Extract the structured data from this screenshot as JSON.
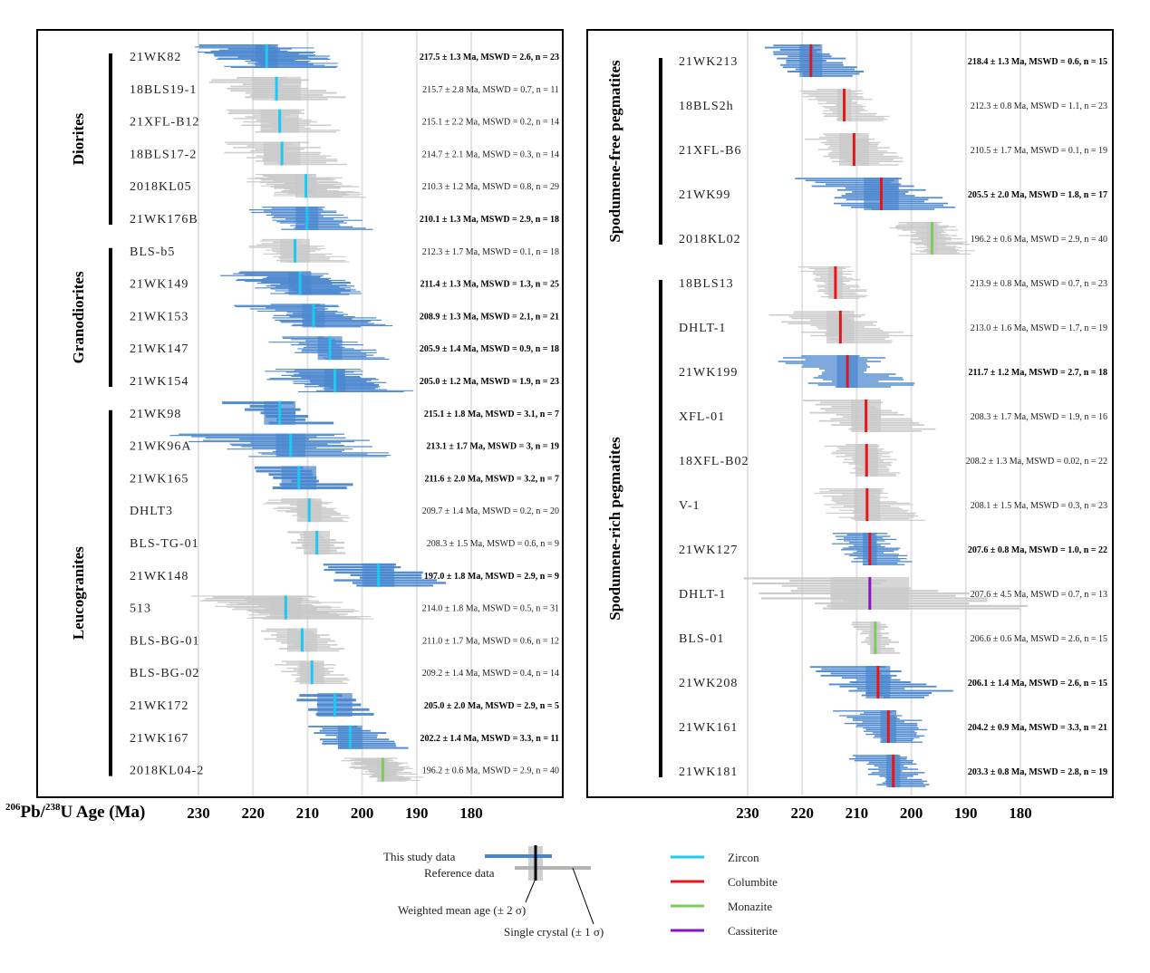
{
  "chart_data": {
    "type": "scatter",
    "subtype": "age-ranked crystal plot with weighted means",
    "xlabel_prefix_sup1": "206",
    "xlabel_part1": "Pb/",
    "xlabel_prefix_sup2": "238",
    "xlabel_part2": "U Age (Ma)",
    "x_ticks": [
      230,
      220,
      210,
      200,
      190,
      180
    ],
    "xlim": [
      235,
      175
    ],
    "x_reversed": true,
    "grid": true,
    "colors": {
      "study": "#4a86cf",
      "reference": "#c8c8c8",
      "Zircon": "#1ec8f5",
      "Columbite": "#e8141a",
      "Monazite": "#7ccc5a",
      "Cassiterite": "#8a12c8"
    },
    "panels": [
      {
        "groups": [
          {
            "name": "Diorites",
            "samples": [
              {
                "id": "21WK82",
                "age": 217.5,
                "err": 1.3,
                "mswd": "2.6",
                "n": 23,
                "mineral": "Zircon",
                "study": true,
                "spread": 16,
                "label": "217.5 ± 1.3 Ma, MSWD = 2.6, n = 23"
              },
              {
                "id": "18BLS19-1",
                "age": 215.7,
                "err": 2.8,
                "mswd": "0.7",
                "n": 11,
                "mineral": "Zircon",
                "study": false,
                "spread": 14,
                "label": "215.7 ± 2.8 Ma, MSWD = 0.7, n = 11"
              },
              {
                "id": "21XFL-B12",
                "age": 215.1,
                "err": 2.2,
                "mswd": "0.2",
                "n": 14,
                "mineral": "Zircon",
                "study": false,
                "spread": 12,
                "label": "215.1 ± 2.2 Ma, MSWD = 0.2, n = 14"
              },
              {
                "id": "18BLS17-2",
                "age": 214.7,
                "err": 2.1,
                "mswd": "0.3",
                "n": 14,
                "mineral": "Zircon",
                "study": false,
                "spread": 13,
                "label": "214.7 ± 2.1 Ma, MSWD = 0.3, n = 14"
              },
              {
                "id": "2018KL05",
                "age": 210.3,
                "err": 1.2,
                "mswd": "0.8",
                "n": 29,
                "mineral": "Zircon",
                "study": false,
                "spread": 12,
                "label": "210.3 ± 1.2 Ma, MSWD = 0.8, n = 29"
              },
              {
                "id": "21WK176B",
                "age": 210.1,
                "err": 1.3,
                "mswd": "2.9",
                "n": 18,
                "mineral": "Zircon",
                "study": true,
                "spread": 12,
                "label": "210.1 ± 1.3 Ma, MSWD = 2.9, n = 18"
              }
            ]
          },
          {
            "name": "Granodiorites",
            "samples": [
              {
                "id": "BLS-b5",
                "age": 212.3,
                "err": 1.7,
                "mswd": "0.1",
                "n": 18,
                "mineral": "Zircon",
                "study": false,
                "spread": 10,
                "label": "212.3 ± 1.7 Ma, MSWD = 0.1, n = 18"
              },
              {
                "id": "21WK149",
                "age": 211.4,
                "err": 1.3,
                "mswd": "1.3",
                "n": 25,
                "mineral": "Zircon",
                "study": true,
                "spread": 16,
                "label": "211.4 ± 1.3 Ma, MSWD = 1.3, n = 25"
              },
              {
                "id": "21WK153",
                "age": 208.9,
                "err": 1.3,
                "mswd": "2.1",
                "n": 21,
                "mineral": "Zircon",
                "study": true,
                "spread": 15,
                "label": "208.9 ± 1.3 Ma, MSWD = 2.1, n = 21"
              },
              {
                "id": "21WK147",
                "age": 205.9,
                "err": 1.4,
                "mswd": "0.9",
                "n": 18,
                "mineral": "Zircon",
                "study": true,
                "spread": 12,
                "label": "205.9 ± 1.4 Ma, MSWD = 0.9, n = 18"
              },
              {
                "id": "21WK154",
                "age": 205.0,
                "err": 1.2,
                "mswd": "1.9",
                "n": 23,
                "mineral": "Zircon",
                "study": true,
                "spread": 15,
                "label": "205.0 ± 1.2 Ma, MSWD = 1.9, n = 23"
              }
            ]
          },
          {
            "name": "Leucogranites",
            "samples": [
              {
                "id": "21WK98",
                "age": 215.1,
                "err": 1.8,
                "mswd": "3.1",
                "n": 7,
                "mineral": "Zircon",
                "study": true,
                "spread": 10,
                "label": "215.1 ± 1.8 Ma, MSWD = 3.1, n = 7"
              },
              {
                "id": "21WK96A",
                "age": 213.1,
                "err": 1.7,
                "mswd": "3",
                "n": 19,
                "mineral": "Zircon",
                "study": true,
                "spread": 22,
                "label": "213.1 ± 1.7 Ma, MSWD = 3, n = 19"
              },
              {
                "id": "21WK165",
                "age": 211.6,
                "err": 2.0,
                "mswd": "3.2",
                "n": 7,
                "mineral": "Zircon",
                "study": true,
                "spread": 10,
                "label": "211.6 ± 2.0 Ma, MSWD = 3.2, n = 7"
              },
              {
                "id": "DHLT3",
                "age": 209.7,
                "err": 1.4,
                "mswd": "0.2",
                "n": 20,
                "mineral": "Zircon",
                "study": false,
                "spread": 9,
                "label": "209.7 ± 1.4 Ma, MSWD = 0.2, n = 20"
              },
              {
                "id": "BLS-TG-01",
                "age": 208.3,
                "err": 1.5,
                "mswd": "0.6",
                "n": 9,
                "mineral": "Zircon",
                "study": false,
                "spread": 7,
                "label": "208.3 ± 1.5 Ma, MSWD = 0.6, n = 9"
              },
              {
                "id": "21WK148",
                "age": 197.0,
                "err": 1.8,
                "mswd": "2.9",
                "n": 9,
                "mineral": "Zircon",
                "study": true,
                "spread": 14,
                "label": "197.0 ± 1.8 Ma, MSWD = 2.9, n = 9"
              },
              {
                "id": "513",
                "age": 214.0,
                "err": 1.8,
                "mswd": "0.5",
                "n": 31,
                "mineral": "Zircon",
                "study": false,
                "spread": 17,
                "label": "214.0 ± 1.8 Ma, MSWD = 0.5, n = 31"
              },
              {
                "id": "BLS-BG-01",
                "age": 211.0,
                "err": 1.7,
                "mswd": "0.6",
                "n": 12,
                "mineral": "Zircon",
                "study": false,
                "spread": 9,
                "label": "211.0 ± 1.7 Ma, MSWD = 0.6, n = 12"
              },
              {
                "id": "BLS-BG-02",
                "age": 209.2,
                "err": 1.4,
                "mswd": "0.4",
                "n": 14,
                "mineral": "Zircon",
                "study": false,
                "spread": 8,
                "label": "209.2 ± 1.4 Ma, MSWD = 0.4, n = 14"
              },
              {
                "id": "21WK172",
                "age": 205.0,
                "err": 2.0,
                "mswd": "2.9",
                "n": 5,
                "mineral": "Zircon",
                "study": true,
                "spread": 9,
                "label": "205.0 ± 2.0 Ma, MSWD = 2.9, n = 5"
              },
              {
                "id": "21WK167",
                "age": 202.2,
                "err": 1.4,
                "mswd": "3.3",
                "n": 11,
                "mineral": "Zircon",
                "study": true,
                "spread": 10,
                "label": "202.2 ± 1.4 Ma, MSWD = 3.3, n = 11"
              },
              {
                "id": "2018KL04-2",
                "age": 196.2,
                "err": 0.6,
                "mswd": "2.9",
                "n": 40,
                "mineral": "Monazite",
                "study": false,
                "spread": 8,
                "label": "196.2 ± 0.6 Ma, MSWD = 2.9, n = 40"
              }
            ]
          }
        ]
      },
      {
        "groups": [
          {
            "name": "Spodumene-free pegmatites",
            "samples": [
              {
                "id": "21WK213",
                "age": 218.4,
                "err": 1.3,
                "mswd": "0.6",
                "n": 15,
                "mineral": "Columbite",
                "study": true,
                "spread": 10,
                "label": "218.4 ± 1.3 Ma, MSWD = 0.6, n = 15"
              },
              {
                "id": "18BLS2h",
                "age": 212.3,
                "err": 0.8,
                "mswd": "1.1",
                "n": 23,
                "mineral": "Columbite",
                "study": false,
                "spread": 9,
                "label": "212.3 ± 0.8 Ma, MSWD = 1.1, n = 23"
              },
              {
                "id": "21XFL-B6",
                "age": 210.5,
                "err": 1.7,
                "mswd": "0.1",
                "n": 19,
                "mineral": "Columbite",
                "study": false,
                "spread": 10,
                "label": "210.5 ± 1.7 Ma, MSWD = 0.1, n = 19"
              },
              {
                "id": "21WK99",
                "age": 205.5,
                "err": 2.0,
                "mswd": "1.8",
                "n": 17,
                "mineral": "Columbite",
                "study": true,
                "spread": 15,
                "label": "205.5 ± 2.0 Ma, MSWD = 1.8, n = 17"
              },
              {
                "id": "2018KL02",
                "age": 196.2,
                "err": 0.6,
                "mswd": "2.9",
                "n": 40,
                "mineral": "Monazite",
                "study": false,
                "spread": 8,
                "label": "196.2 ± 0.6 Ma, MSWD = 2.9, n = 40"
              }
            ]
          },
          {
            "name": "Spodumene-rich pegmatites",
            "samples": [
              {
                "id": "18BLS13",
                "age": 213.9,
                "err": 0.8,
                "mswd": "0.7",
                "n": 23,
                "mineral": "Columbite",
                "study": false,
                "spread": 7,
                "label": "213.9 ± 0.8 Ma, MSWD = 0.7, n = 23"
              },
              {
                "id": "DHLT-1",
                "age": 213.0,
                "err": 1.6,
                "mswd": "1.7",
                "n": 19,
                "mineral": "Columbite",
                "study": false,
                "spread": 14,
                "label": "213.0 ± 1.6 Ma, MSWD = 1.7, n = 19"
              },
              {
                "id": "21WK199",
                "age": 211.7,
                "err": 1.2,
                "mswd": "2.7",
                "n": 18,
                "mineral": "Columbite",
                "study": true,
                "spread": 14,
                "label": "211.7 ± 1.2 Ma, MSWD = 2.7, n = 18"
              },
              {
                "id": "XFL-01",
                "age": 208.3,
                "err": 1.7,
                "mswd": "1.9",
                "n": 16,
                "mineral": "Columbite",
                "study": false,
                "spread": 13,
                "label": "208.3 ± 1.7 Ma, MSWD = 1.9, n = 16"
              },
              {
                "id": "18XFL-B02",
                "age": 208.2,
                "err": 1.3,
                "mswd": "0.02",
                "n": 22,
                "mineral": "Columbite",
                "study": false,
                "spread": 8,
                "label": "208.2 ± 1.3 Ma, MSWD = 0.02, n = 22"
              },
              {
                "id": "V-1",
                "age": 208.1,
                "err": 1.5,
                "mswd": "0.3",
                "n": 23,
                "mineral": "Columbite",
                "study": false,
                "spread": 12,
                "label": "208.1 ± 1.5 Ma, MSWD = 0.3, n = 23"
              },
              {
                "id": "21WK127",
                "age": 207.6,
                "err": 0.8,
                "mswd": "1.0",
                "n": 22,
                "mineral": "Columbite",
                "study": true,
                "spread": 8,
                "label": "207.6 ± 0.8 Ma, MSWD = 1.0, n = 22"
              },
              {
                "id": "DHLT-1",
                "age": 207.6,
                "err": 4.5,
                "mswd": "0.7",
                "n": 13,
                "mineral": "Cassiterite",
                "study": false,
                "spread": 30,
                "label": "207.6 ± 4.5 Ma, MSWD = 0.7, n = 13"
              },
              {
                "id": "BLS-01",
                "age": 206.6,
                "err": 0.6,
                "mswd": "2.6",
                "n": 15,
                "mineral": "Monazite",
                "study": false,
                "spread": 5,
                "label": "206.6 ± 0.6 Ma, MSWD = 2.6, n = 15"
              },
              {
                "id": "21WK208",
                "age": 206.1,
                "err": 1.4,
                "mswd": "2.6",
                "n": 15,
                "mineral": "Columbite",
                "study": true,
                "spread": 14,
                "label": "206.1 ± 1.4 Ma, MSWD = 2.6, n = 15"
              },
              {
                "id": "21WK161",
                "age": 204.2,
                "err": 0.9,
                "mswd": "3.3",
                "n": 21,
                "mineral": "Columbite",
                "study": true,
                "spread": 10,
                "label": "204.2 ± 0.9 Ma, MSWD = 3.3, n = 21"
              },
              {
                "id": "21WK181",
                "age": 203.3,
                "err": 0.8,
                "mswd": "2.8",
                "n": 19,
                "mineral": "Columbite",
                "study": true,
                "spread": 8,
                "label": "203.3 ± 0.8 Ma, MSWD = 2.8, n = 19"
              }
            ]
          }
        ]
      }
    ]
  },
  "legend": {
    "study_label": "This study data",
    "reference_label": "Reference data",
    "weighted_mean_label": "Weighted mean age (± 2 σ)",
    "single_crystal_label": "Single crystal (± 1 σ)",
    "minerals": [
      "Zircon",
      "Columbite",
      "Monazite",
      "Cassiterite"
    ]
  }
}
